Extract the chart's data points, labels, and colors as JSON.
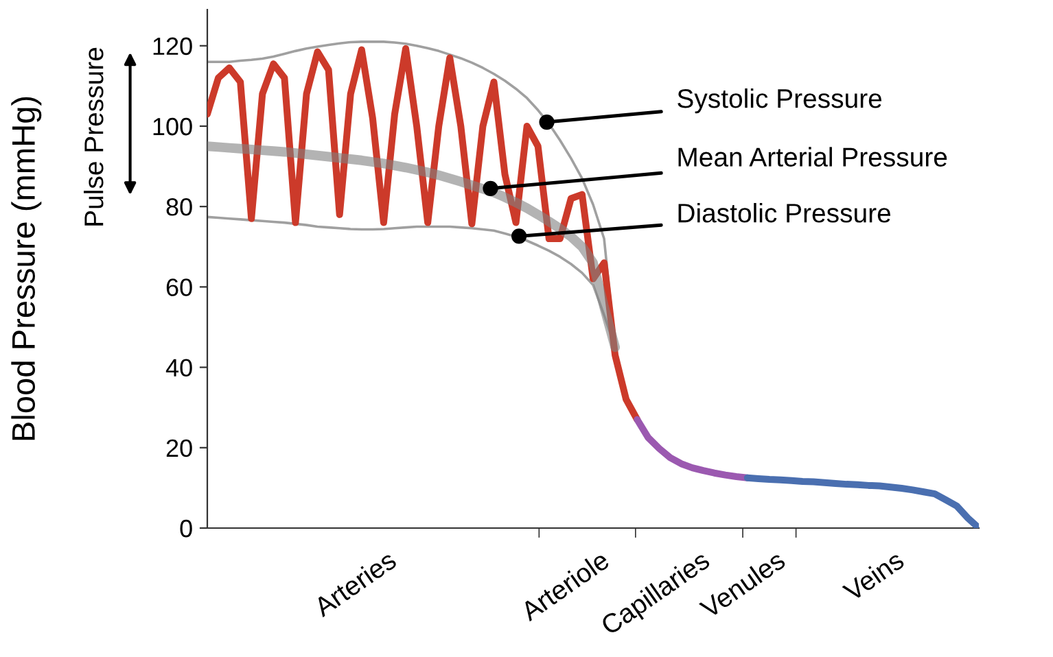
{
  "chart_data": {
    "type": "line",
    "ylabel": "Blood Pressure (mmHg)",
    "categories": [
      null,
      null,
      null,
      null,
      null,
      null,
      null,
      null,
      null,
      null,
      null,
      null,
      null,
      null,
      null,
      null,
      null,
      null,
      null,
      null,
      null,
      null,
      null,
      null,
      null,
      null,
      null,
      null,
      null,
      null,
      null,
      null,
      null,
      null,
      null,
      null,
      null,
      null,
      null,
      null,
      null,
      null,
      null,
      null,
      null,
      null,
      null,
      null,
      null,
      null,
      null,
      null,
      null,
      null,
      null,
      null,
      null,
      null,
      null,
      null,
      null,
      null,
      null,
      null,
      null,
      null,
      null,
      null,
      null,
      null,
      null
    ],
    "ylim": [
      0,
      129
    ],
    "yticks": [
      0,
      20,
      40,
      60,
      80,
      100,
      120
    ],
    "grid": false,
    "legend": false,
    "series": [
      {
        "color": "#cc3a2a",
        "values": [
          103,
          112,
          114.5,
          111,
          77,
          108,
          115.5,
          112,
          76,
          108,
          118.5,
          114,
          78,
          108,
          119,
          102,
          76,
          103,
          119.3,
          100,
          76,
          100,
          117,
          100,
          75.7,
          100,
          111,
          88,
          76,
          100,
          95,
          72,
          72,
          82,
          83,
          62,
          66,
          43,
          32,
          27,
          null,
          null,
          null,
          null,
          null,
          null,
          null,
          null,
          null,
          null,
          null,
          null,
          null,
          null,
          null,
          null,
          null,
          null,
          null,
          null,
          null,
          null,
          null,
          null,
          null,
          null,
          null,
          null,
          null,
          null,
          null
        ]
      },
      {
        "color": "#9b59b0",
        "values": [
          null,
          null,
          null,
          null,
          null,
          null,
          null,
          null,
          null,
          null,
          null,
          null,
          null,
          null,
          null,
          null,
          null,
          null,
          null,
          null,
          null,
          null,
          null,
          null,
          null,
          null,
          null,
          null,
          null,
          null,
          null,
          null,
          null,
          null,
          null,
          null,
          null,
          null,
          null,
          27,
          22.5,
          19.8,
          17.5,
          16,
          15,
          14.3,
          13.7,
          13.2,
          12.8,
          12.5,
          null,
          null,
          null,
          null,
          null,
          null,
          null,
          null,
          null,
          null,
          null,
          null,
          null,
          null,
          null,
          null,
          null,
          null,
          null,
          null,
          null
        ]
      },
      {
        "color": "#4a6fb0",
        "values": [
          null,
          null,
          null,
          null,
          null,
          null,
          null,
          null,
          null,
          null,
          null,
          null,
          null,
          null,
          null,
          null,
          null,
          null,
          null,
          null,
          null,
          null,
          null,
          null,
          null,
          null,
          null,
          null,
          null,
          null,
          null,
          null,
          null,
          null,
          null,
          null,
          null,
          null,
          null,
          null,
          null,
          null,
          null,
          null,
          null,
          null,
          null,
          null,
          null,
          12.5,
          12.3,
          12.1,
          12,
          11.8,
          11.6,
          11.5,
          11.3,
          11.1,
          10.9,
          10.8,
          10.6,
          10.5,
          10.2,
          9.9,
          9.5,
          9,
          8.5,
          7,
          5.5,
          2.5,
          0
        ]
      },
      {
        "color": "#a0a0a0",
        "values": [
          116,
          116,
          116,
          116.3,
          116.5,
          116.8,
          117.3,
          118,
          118.7,
          119.3,
          119.8,
          120.2,
          120.6,
          120.9,
          121,
          121,
          121,
          120.8,
          120.5,
          120,
          119.4,
          118.7,
          117.8,
          116.9,
          115.8,
          114.5,
          113,
          111.3,
          109.3,
          107,
          104,
          100.6,
          96.5,
          92,
          87,
          80.5,
          72,
          45,
          null,
          null,
          null,
          null,
          null,
          null,
          null,
          null,
          null,
          null,
          null,
          null,
          null,
          null,
          null,
          null,
          null,
          null,
          null,
          null,
          null,
          null,
          null,
          null,
          null,
          null,
          null,
          null,
          null,
          null,
          null,
          null,
          null
        ]
      },
      {
        "color": "#a0a0a0",
        "values": [
          77.4,
          77.2,
          77,
          76.8,
          76.6,
          76.4,
          76.2,
          76,
          75.7,
          75.4,
          75,
          74.8,
          74.6,
          74.4,
          74.3,
          74.3,
          74.4,
          74.6,
          74.8,
          75,
          75,
          75,
          75,
          74.8,
          74.6,
          74.3,
          74,
          73.3,
          72.5,
          71.5,
          70.3,
          69,
          67.5,
          65.7,
          63.5,
          60.5,
          53,
          45,
          null,
          null,
          null,
          null,
          null,
          null,
          null,
          null,
          null,
          null,
          null,
          null,
          null,
          null,
          null,
          null,
          null,
          null,
          null,
          null,
          null,
          null,
          null,
          null,
          null,
          null,
          null,
          null,
          null,
          null,
          null,
          null,
          null
        ]
      },
      {
        "color": "#808080",
        "values": [
          95,
          94.8,
          94.6,
          94.4,
          94.2,
          94,
          93.8,
          93.6,
          93.3,
          93,
          92.7,
          92.4,
          92.1,
          91.8,
          91.5,
          91.1,
          90.7,
          90.2,
          89.7,
          89.1,
          88.5,
          87.8,
          87,
          86.2,
          85.3,
          84.4,
          83.5,
          82.3,
          81,
          79.6,
          78,
          76.3,
          74.5,
          72.5,
          70,
          66,
          55,
          45,
          null,
          null,
          null,
          null,
          null,
          null,
          null,
          null,
          null,
          null,
          null,
          null,
          null,
          null,
          null,
          null,
          null,
          null,
          null,
          null,
          null,
          null,
          null,
          null,
          null,
          null,
          null,
          null,
          null,
          null,
          null,
          null,
          null
        ]
      }
    ],
    "annotations": [
      "Systolic Pressure",
      "Mean Arterial Pressure",
      "Diastolic Pressure",
      "Pulse Pressure",
      "Arteries",
      "Arteriole",
      "Capillaries",
      "Venules",
      "Veins"
    ]
  }
}
